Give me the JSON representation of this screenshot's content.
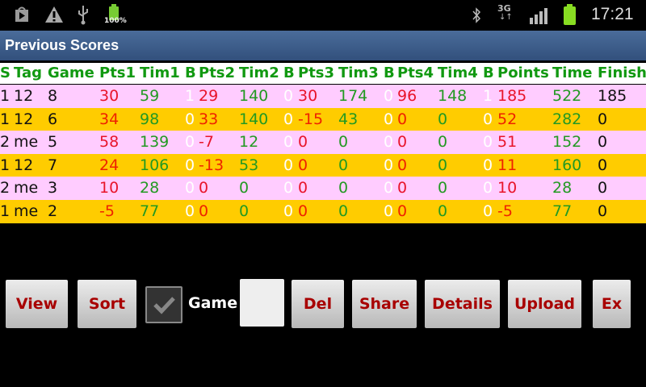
{
  "status_bar": {
    "left_icons": [
      "play-store-icon",
      "warning-icon",
      "usb-icon",
      "battery-charging-icon"
    ],
    "battery_label": "100%",
    "right_icons": [
      "bluetooth-icon",
      "3g-data-icon",
      "signal-icon",
      "battery-icon"
    ],
    "network_label": "3G",
    "time": "17:21"
  },
  "title": "Previous Scores",
  "colors": {
    "row_a": "#ffccff",
    "row_b": "#ffcc00",
    "points": "#e8142a",
    "time": "#229922",
    "header": "#119911",
    "bonus": "#ffffff"
  },
  "table": {
    "headers": [
      "S",
      "Tag",
      "Game",
      "Pts1",
      "Tim1",
      "B",
      "Pts2",
      "Tim2",
      "B",
      "Pts3",
      "Tim3",
      "B",
      "Pts4",
      "Tim4",
      "B",
      "Points",
      "Time",
      "Finish"
    ],
    "rows": [
      [
        "1",
        "12",
        "8",
        "30",
        "59",
        "1",
        "29",
        "140",
        "0",
        "30",
        "174",
        "0",
        "96",
        "148",
        "1",
        "185",
        "522",
        "185"
      ],
      [
        "1",
        "12",
        "6",
        "34",
        "98",
        "0",
        "33",
        "140",
        "0",
        "-15",
        "43",
        "0",
        "0",
        "0",
        "0",
        "52",
        "282",
        "0"
      ],
      [
        "2",
        "me",
        "5",
        "58",
        "139",
        "0",
        "-7",
        "12",
        "0",
        "0",
        "0",
        "0",
        "0",
        "0",
        "0",
        "51",
        "152",
        "0"
      ],
      [
        "1",
        "12",
        "7",
        "24",
        "106",
        "0",
        "-13",
        "53",
        "0",
        "0",
        "0",
        "0",
        "0",
        "0",
        "0",
        "11",
        "160",
        "0"
      ],
      [
        "2",
        "me",
        "3",
        "10",
        "28",
        "0",
        "0",
        "0",
        "0",
        "0",
        "0",
        "0",
        "0",
        "0",
        "0",
        "10",
        "28",
        "0"
      ],
      [
        "1",
        "me",
        "2",
        "-5",
        "77",
        "0",
        "0",
        "0",
        "0",
        "0",
        "0",
        "0",
        "0",
        "0",
        "0",
        "-5",
        "77",
        "0"
      ]
    ]
  },
  "controls": {
    "view": "View",
    "sort": "Sort",
    "game_checkbox_label": "Game",
    "game_checked": true,
    "game_input_value": "",
    "del": "Del",
    "share": "Share",
    "details": "Details",
    "upload": "Upload",
    "ex": "Ex"
  }
}
